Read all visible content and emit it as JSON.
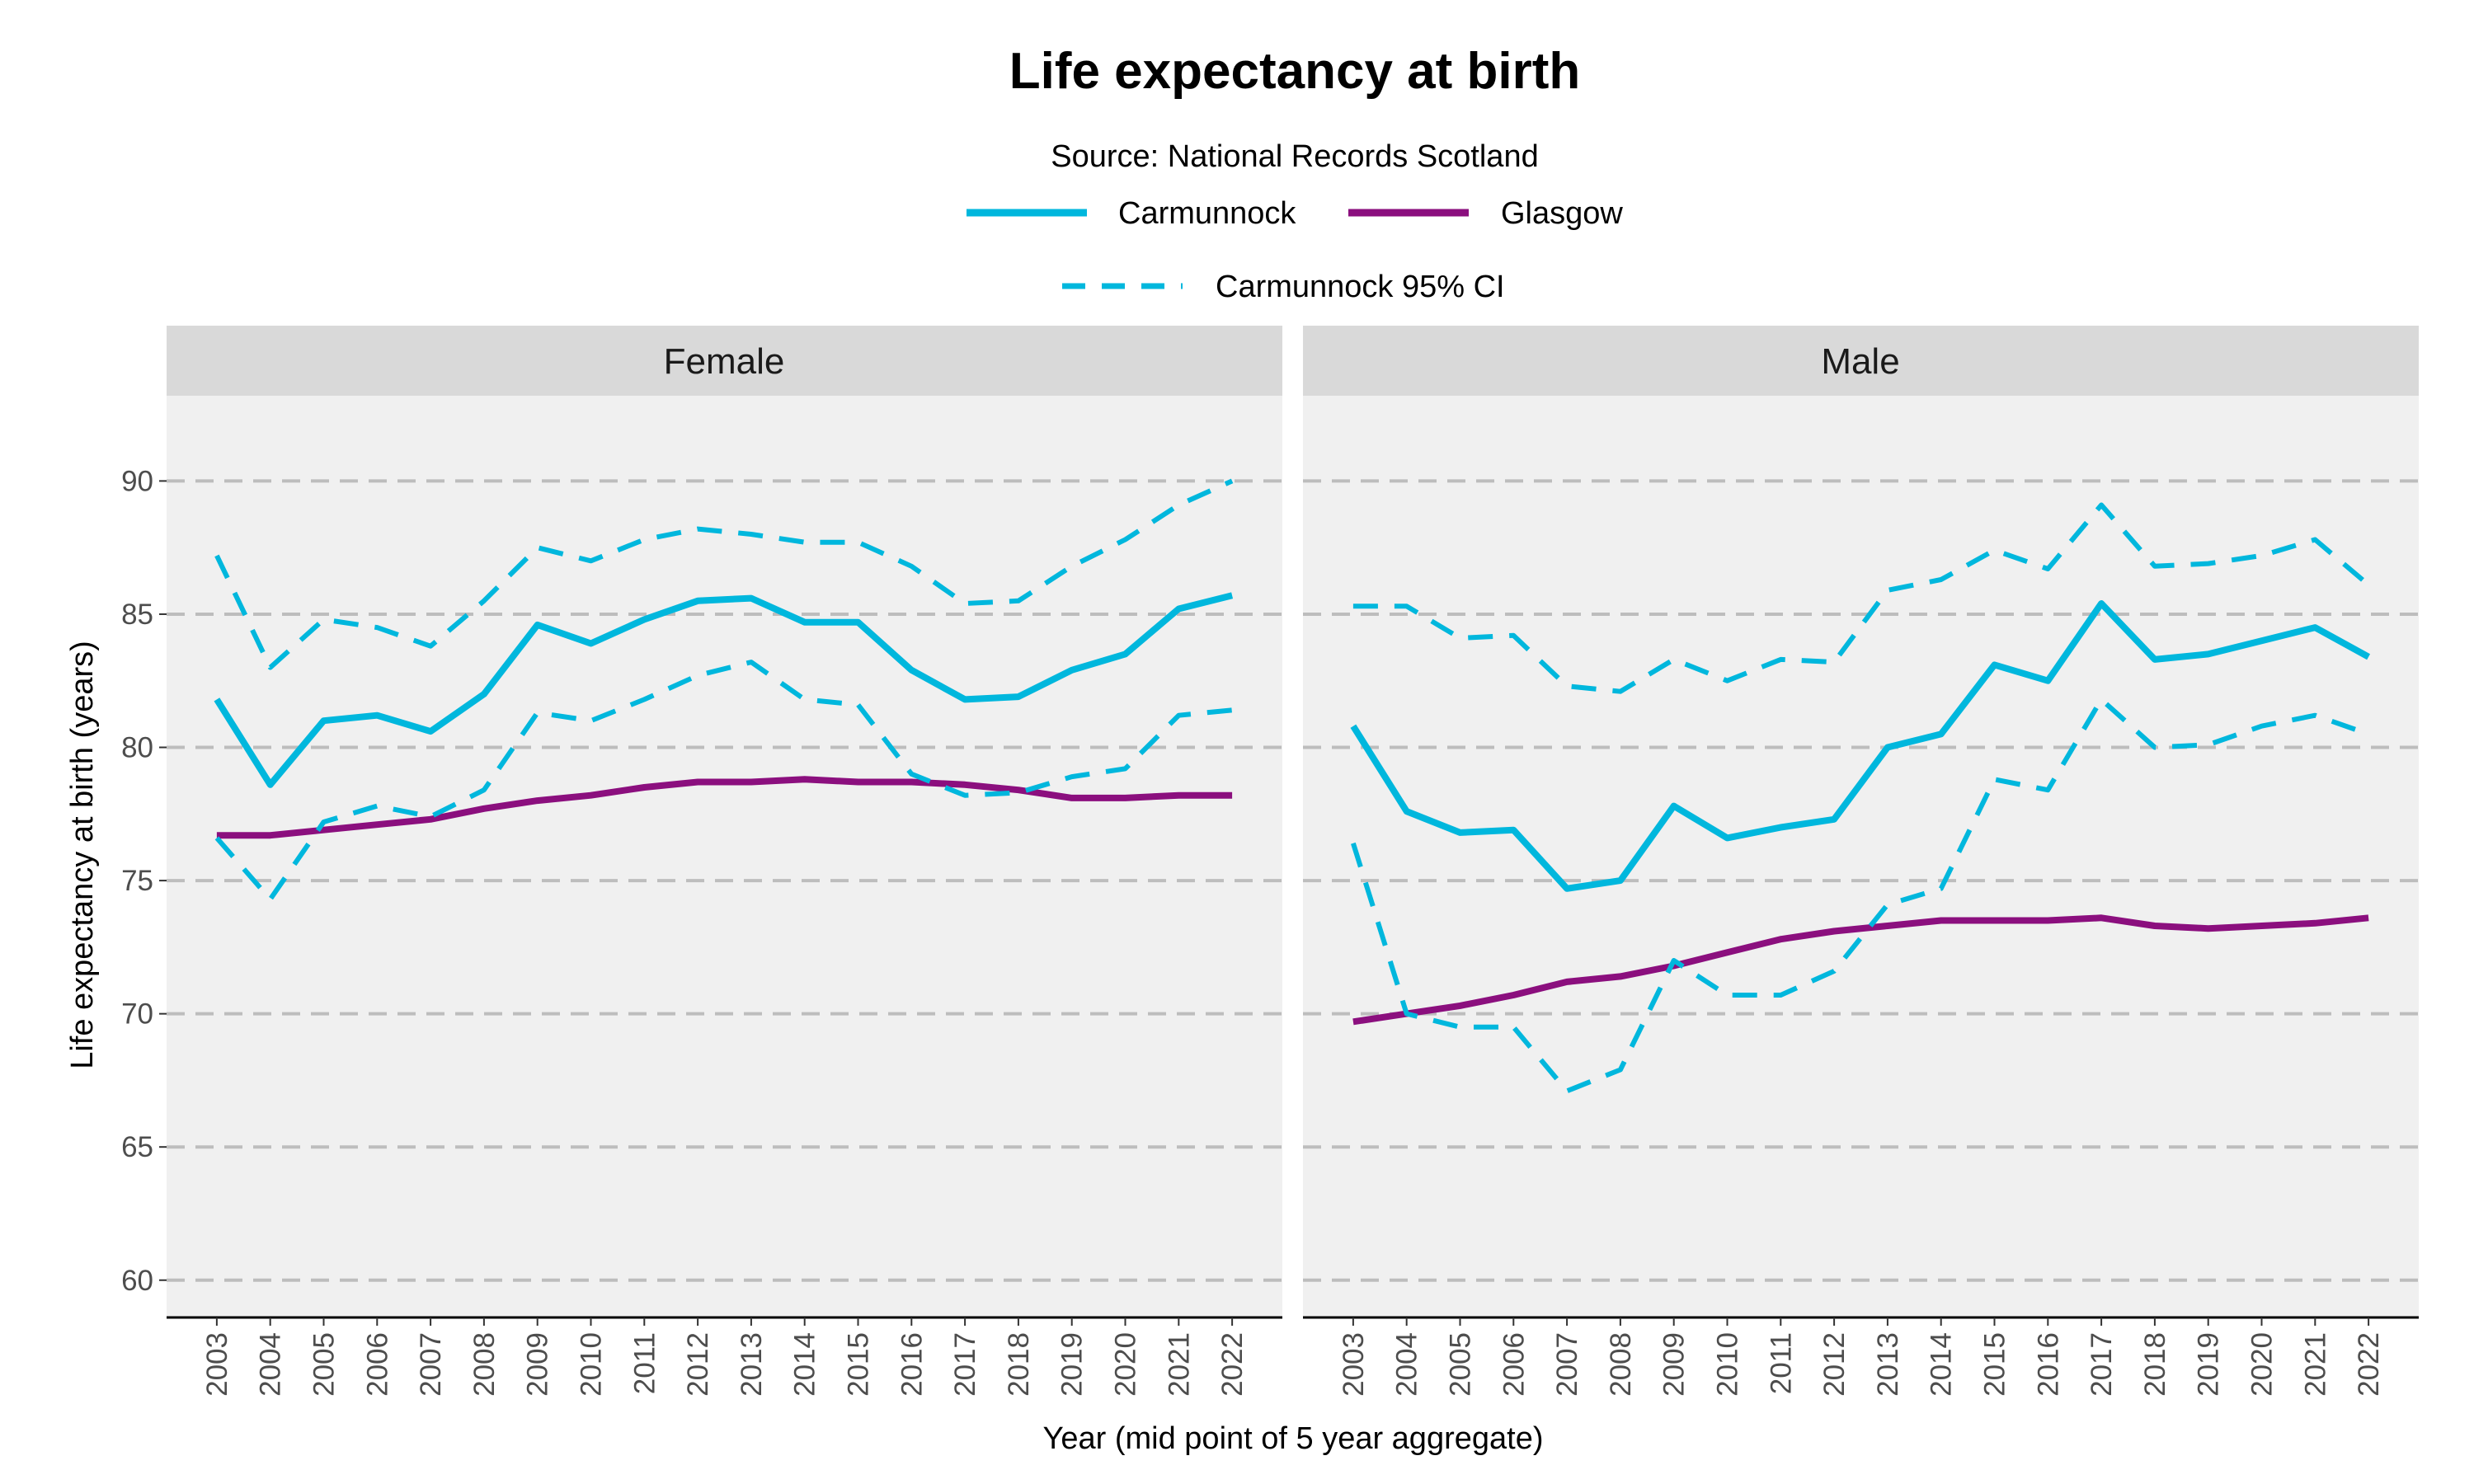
{
  "chart_data": {
    "type": "line",
    "title": "Life expectancy at birth",
    "subtitle": "Source: National Records Scotland",
    "xlabel": "Year (mid point of 5 year aggregate)",
    "ylabel": "Life expectancy at birth (years)",
    "ylim": [
      58.6,
      93.2
    ],
    "yticks": [
      60,
      65,
      70,
      75,
      80,
      85,
      90
    ],
    "grid": "horizontal dashed",
    "legend_position": "top",
    "legend": {
      "carmunnock": "Carmunnock",
      "glasgow": "Glasgow",
      "ci": "Carmunnock 95% CI"
    },
    "colors": {
      "carmunnock": "#00b7dd",
      "glasgow": "#8b0f7e",
      "panel_bg": "#f0f0f0",
      "strip_bg": "#d9d9d9"
    },
    "x": [
      2003,
      2004,
      2005,
      2006,
      2007,
      2008,
      2009,
      2010,
      2011,
      2012,
      2013,
      2014,
      2015,
      2016,
      2017,
      2018,
      2019,
      2020,
      2021,
      2022
    ],
    "panels": [
      {
        "label": "Female",
        "series": [
          {
            "name": "Carmunnock",
            "style": "solid",
            "values": [
              81.8,
              78.6,
              81.0,
              81.2,
              80.6,
              82.0,
              84.6,
              83.9,
              84.8,
              85.5,
              85.6,
              84.7,
              84.7,
              82.9,
              81.8,
              81.9,
              82.9,
              83.5,
              85.2,
              85.7
            ]
          },
          {
            "name": "Glasgow",
            "style": "solid",
            "values": [
              76.7,
              76.7,
              76.9,
              77.1,
              77.3,
              77.7,
              78.0,
              78.2,
              78.5,
              78.7,
              78.7,
              78.8,
              78.7,
              78.7,
              78.6,
              78.4,
              78.1,
              78.1,
              78.2,
              78.2
            ]
          },
          {
            "name": "Carmunnock 95% CI upper",
            "style": "dashed",
            "values": [
              87.2,
              83.0,
              84.8,
              84.5,
              83.8,
              85.5,
              87.5,
              87.0,
              87.8,
              88.2,
              88.0,
              87.7,
              87.7,
              86.8,
              85.4,
              85.5,
              86.8,
              87.8,
              89.1,
              90.0
            ]
          },
          {
            "name": "Carmunnock 95% CI lower",
            "style": "dashed",
            "values": [
              76.6,
              74.3,
              77.2,
              77.8,
              77.4,
              78.4,
              81.3,
              81.0,
              81.8,
              82.7,
              83.2,
              81.8,
              81.6,
              79.0,
              78.2,
              78.3,
              78.9,
              79.2,
              81.2,
              81.4
            ]
          }
        ]
      },
      {
        "label": "Male",
        "series": [
          {
            "name": "Carmunnock",
            "style": "solid",
            "values": [
              80.8,
              77.6,
              76.8,
              76.9,
              74.7,
              75.0,
              77.8,
              76.6,
              77.0,
              77.3,
              80.0,
              80.5,
              83.1,
              82.5,
              85.4,
              83.3,
              83.5,
              84.0,
              84.5,
              83.4
            ]
          },
          {
            "name": "Glasgow",
            "style": "solid",
            "values": [
              69.7,
              70.0,
              70.3,
              70.7,
              71.2,
              71.4,
              71.8,
              72.3,
              72.8,
              73.1,
              73.3,
              73.5,
              73.5,
              73.5,
              73.6,
              73.3,
              73.2,
              73.3,
              73.4,
              73.6
            ]
          },
          {
            "name": "Carmunnock 95% CI upper",
            "style": "dashed",
            "values": [
              85.3,
              85.3,
              84.1,
              84.2,
              82.3,
              82.1,
              83.3,
              82.5,
              83.3,
              83.2,
              85.9,
              86.3,
              87.4,
              86.7,
              89.1,
              86.8,
              86.9,
              87.2,
              87.8,
              86.1
            ]
          },
          {
            "name": "Carmunnock 95% CI lower",
            "style": "dashed",
            "values": [
              76.4,
              70.0,
              69.5,
              69.5,
              67.1,
              67.9,
              72.0,
              70.7,
              70.7,
              71.6,
              74.1,
              74.7,
              78.8,
              78.4,
              81.8,
              80.0,
              80.1,
              80.8,
              81.2,
              80.5
            ]
          }
        ]
      }
    ]
  }
}
